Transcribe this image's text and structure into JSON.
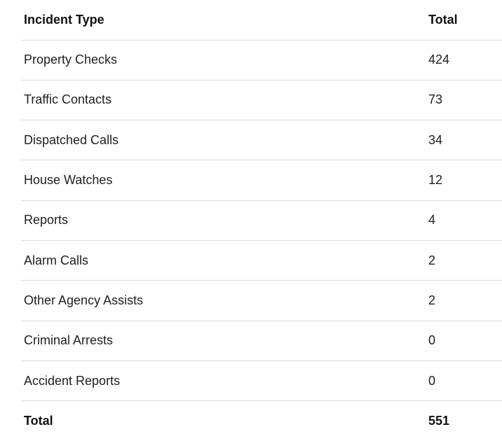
{
  "table": {
    "headers": {
      "type": "Incident Type",
      "total": "Total"
    },
    "rows": [
      {
        "type": "Property Checks",
        "total": "424"
      },
      {
        "type": "Traffic Contacts",
        "total": "73"
      },
      {
        "type": "Dispatched Calls",
        "total": "34"
      },
      {
        "type": "House Watches",
        "total": "12"
      },
      {
        "type": "Reports",
        "total": "4"
      },
      {
        "type": "Alarm Calls",
        "total": "2"
      },
      {
        "type": "Other Agency Assists",
        "total": "2"
      },
      {
        "type": "Criminal Arrests",
        "total": "0"
      },
      {
        "type": "Accident Reports",
        "total": "0"
      }
    ],
    "footer": {
      "type": "Total",
      "total": "551"
    }
  }
}
